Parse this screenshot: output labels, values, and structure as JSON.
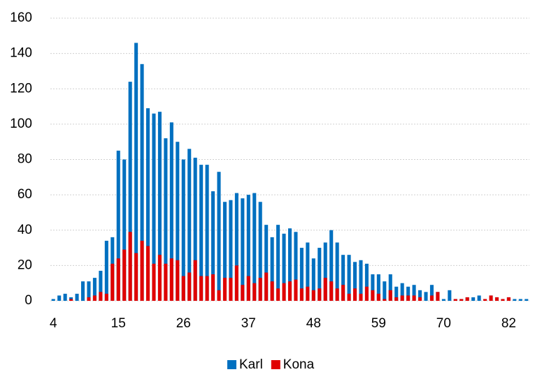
{
  "chart_data": {
    "type": "bar",
    "mode": "overlap",
    "categories": [
      4,
      null,
      null,
      null,
      null,
      null,
      null,
      null,
      null,
      null,
      null,
      15,
      null,
      null,
      null,
      null,
      null,
      null,
      null,
      null,
      null,
      null,
      26,
      null,
      null,
      null,
      null,
      null,
      null,
      null,
      null,
      null,
      null,
      37,
      null,
      null,
      null,
      null,
      null,
      null,
      null,
      null,
      null,
      null,
      48,
      null,
      null,
      null,
      null,
      null,
      null,
      null,
      null,
      null,
      null,
      59,
      null,
      null,
      null,
      null,
      null,
      null,
      null,
      null,
      null,
      null,
      70,
      null,
      null,
      null,
      null,
      null,
      null,
      null,
      null,
      null,
      null,
      82,
      null,
      null,
      null
    ],
    "series": [
      {
        "name": "Karl",
        "color": "#0070c0",
        "values": [
          1,
          3,
          4,
          2,
          4,
          11,
          11,
          13,
          17,
          34,
          36,
          85,
          80,
          124,
          146,
          134,
          109,
          106,
          107,
          92,
          101,
          90,
          80,
          86,
          81,
          77,
          77,
          62,
          73,
          56,
          57,
          61,
          58,
          60,
          61,
          56,
          43,
          36,
          43,
          38,
          41,
          39,
          30,
          33,
          24,
          30,
          33,
          40,
          33,
          26,
          26,
          22,
          23,
          21,
          15,
          15,
          11,
          15,
          8,
          10,
          8,
          9,
          6,
          5,
          9,
          5,
          1,
          6,
          1,
          1,
          2,
          2,
          3,
          1,
          3,
          2,
          1,
          2,
          1,
          1,
          1
        ]
      },
      {
        "name": "Kona",
        "color": "#e00000",
        "values": [
          0,
          0,
          0,
          1,
          0,
          0,
          2,
          3,
          5,
          4,
          21,
          24,
          29,
          39,
          27,
          34,
          31,
          21,
          26,
          21,
          24,
          23,
          14,
          16,
          23,
          14,
          14,
          15,
          6,
          13,
          13,
          20,
          9,
          14,
          10,
          13,
          16,
          11,
          7,
          10,
          11,
          12,
          7,
          8,
          6,
          7,
          13,
          11,
          7,
          9,
          4,
          7,
          4,
          8,
          6,
          4,
          1,
          6,
          2,
          3,
          3,
          3,
          2,
          0,
          3,
          5,
          0,
          0,
          1,
          1,
          2,
          0,
          0,
          1,
          3,
          2,
          1,
          2,
          0,
          0,
          0
        ]
      }
    ],
    "ylim": [
      0,
      160
    ],
    "yticks": [
      0,
      20,
      40,
      60,
      80,
      100,
      120,
      140,
      160
    ],
    "grid": true,
    "legend": "bottom"
  }
}
